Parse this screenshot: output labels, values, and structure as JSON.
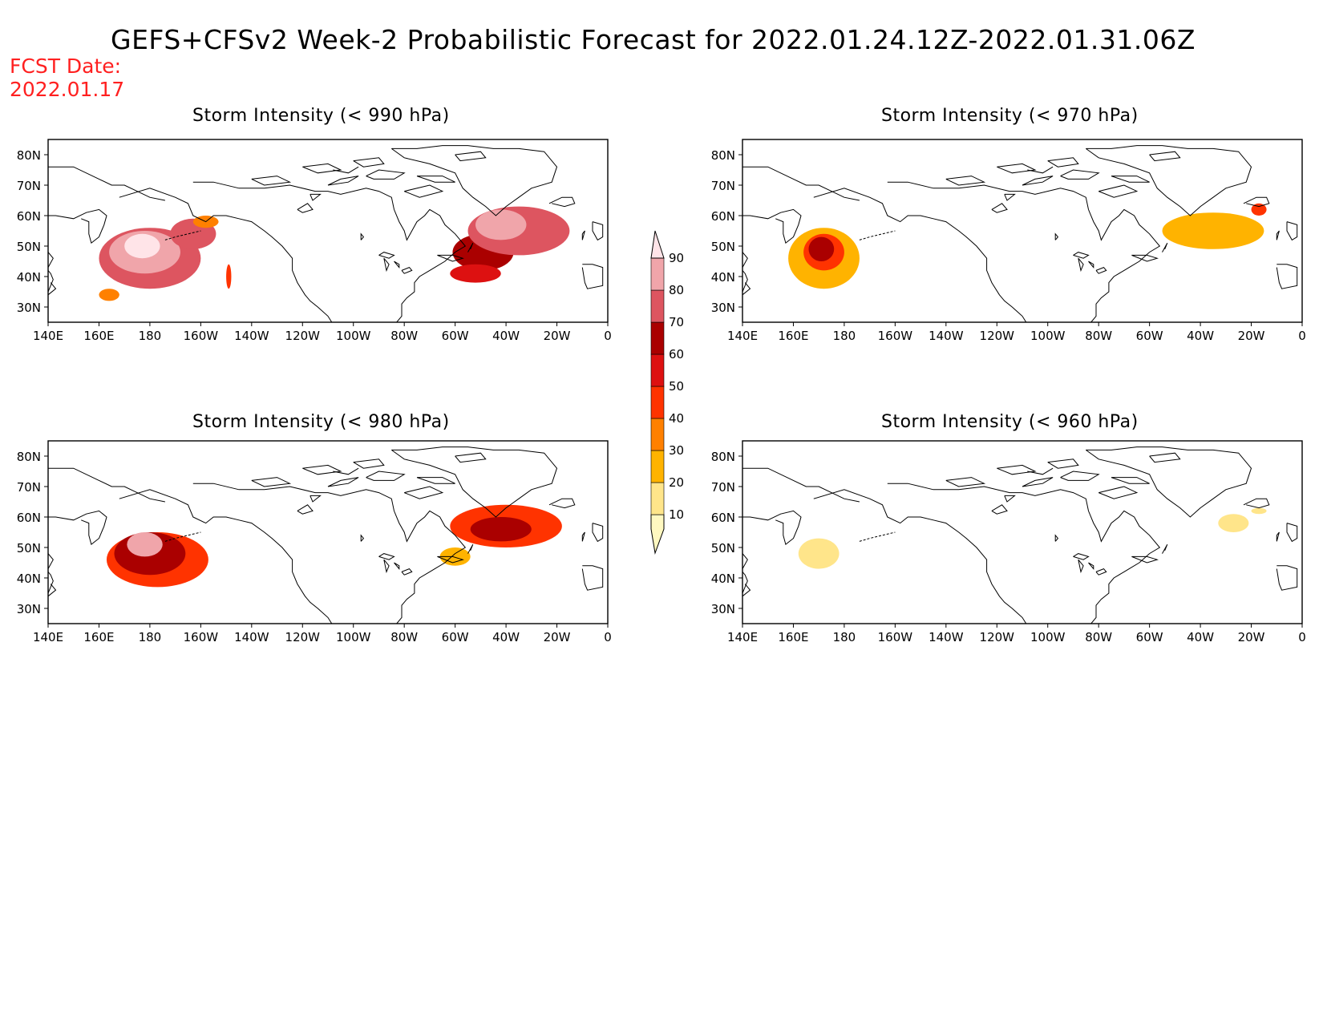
{
  "title": "GEFS+CFSv2 Week-2 Probabilistic Forecast for 2022.01.24.12Z-2022.01.31.06Z",
  "fcst_label": "FCST Date:",
  "fcst_date": "2022.01.17",
  "lat_labels": [
    "80N",
    "70N",
    "60N",
    "50N",
    "40N",
    "30N"
  ],
  "lon_labels": [
    "140E",
    "160E",
    "180",
    "160W",
    "140W",
    "120W",
    "100W",
    "80W",
    "60W",
    "40W",
    "20W",
    "0"
  ],
  "colorbar": {
    "levels": [
      10,
      20,
      30,
      40,
      50,
      60,
      70,
      80,
      90
    ],
    "labels": [
      "10",
      "20",
      "30",
      "40",
      "50",
      "60",
      "70",
      "80",
      "90"
    ],
    "colors": [
      "#fff8c0",
      "#ffe58a",
      "#ffb300",
      "#ff8000",
      "#ff3300",
      "#dd1111",
      "#aa0000",
      "#dd5560",
      "#f0a5aa",
      "#ffe4e8"
    ]
  },
  "panels": [
    {
      "id": "p990",
      "title": "Storm Intensity (< 990 hPa)",
      "blobs": [
        {
          "lon": 180,
          "lat": 46,
          "rx": 20,
          "ry": 10,
          "p": 70
        },
        {
          "lon": 178,
          "lat": 48,
          "rx": 14,
          "ry": 7,
          "p": 80
        },
        {
          "lon": 177,
          "lat": 50,
          "rx": 7,
          "ry": 4,
          "p": 90
        },
        {
          "lon": 197,
          "lat": 54,
          "rx": 9,
          "ry": 5,
          "p": 70
        },
        {
          "lon": 202,
          "lat": 58,
          "rx": 5,
          "ry": 2,
          "p": 30
        },
        {
          "lon": 164,
          "lat": 34,
          "rx": 4,
          "ry": 2,
          "p": 30
        },
        {
          "lon": 211,
          "lat": 40,
          "rx": 1,
          "ry": 4,
          "p": 40
        },
        {
          "lon": 311,
          "lat": 48,
          "rx": 12,
          "ry": 6,
          "p": 60
        },
        {
          "lon": 308,
          "lat": 41,
          "rx": 10,
          "ry": 3,
          "p": 50
        },
        {
          "lon": 325,
          "lat": 55,
          "rx": 20,
          "ry": 8,
          "p": 70
        },
        {
          "lon": 318,
          "lat": 57,
          "rx": 10,
          "ry": 5,
          "p": 80
        }
      ]
    },
    {
      "id": "p970",
      "title": "Storm Intensity (< 970 hPa)",
      "blobs": [
        {
          "lon": 172,
          "lat": 46,
          "rx": 14,
          "ry": 10,
          "p": 20
        },
        {
          "lon": 172,
          "lat": 48,
          "rx": 8,
          "ry": 6,
          "p": 40
        },
        {
          "lon": 171,
          "lat": 49,
          "rx": 5,
          "ry": 4,
          "p": 60
        },
        {
          "lon": 325,
          "lat": 55,
          "rx": 20,
          "ry": 6,
          "p": 20
        },
        {
          "lon": 343,
          "lat": 62,
          "rx": 3,
          "ry": 2,
          "p": 40
        }
      ]
    },
    {
      "id": "p980",
      "title": "Storm Intensity (< 980 hPa)",
      "blobs": [
        {
          "lon": 183,
          "lat": 46,
          "rx": 20,
          "ry": 9,
          "p": 40
        },
        {
          "lon": 180,
          "lat": 48,
          "rx": 14,
          "ry": 7,
          "p": 60
        },
        {
          "lon": 178,
          "lat": 51,
          "rx": 7,
          "ry": 4,
          "p": 80
        },
        {
          "lon": 320,
          "lat": 57,
          "rx": 22,
          "ry": 7,
          "p": 40
        },
        {
          "lon": 318,
          "lat": 56,
          "rx": 12,
          "ry": 4,
          "p": 60
        },
        {
          "lon": 300,
          "lat": 47,
          "rx": 6,
          "ry": 3,
          "p": 20
        }
      ]
    },
    {
      "id": "p960",
      "title": "Storm Intensity (< 960 hPa)",
      "blobs": [
        {
          "lon": 170,
          "lat": 48,
          "rx": 8,
          "ry": 5,
          "p": 10
        },
        {
          "lon": 333,
          "lat": 58,
          "rx": 6,
          "ry": 3,
          "p": 10
        },
        {
          "lon": 343,
          "lat": 62,
          "rx": 3,
          "ry": 1,
          "p": 10
        }
      ]
    }
  ]
}
